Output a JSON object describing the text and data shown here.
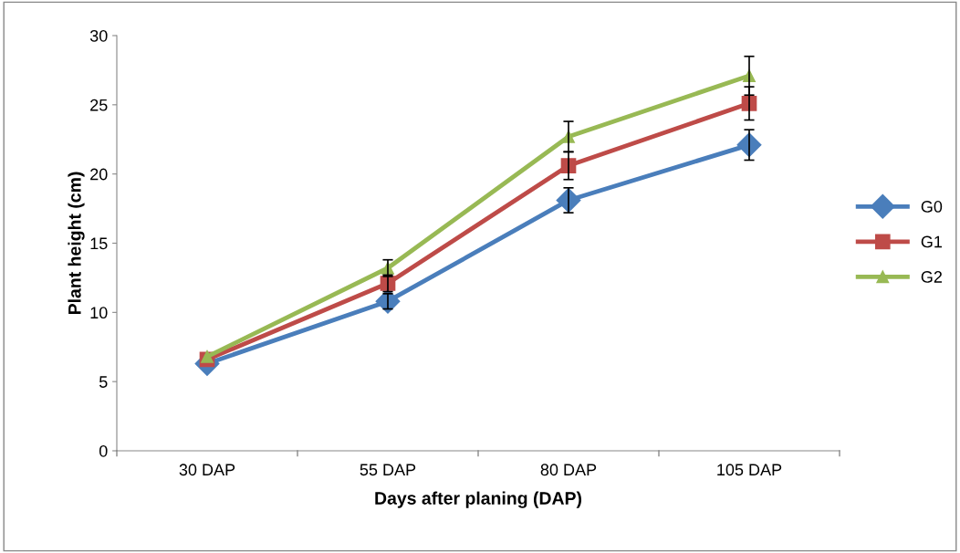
{
  "chart_data": {
    "type": "line",
    "xlabel": "Days after planing (DAP)",
    "ylabel": "Plant height (cm)",
    "categories": [
      "30 DAP",
      "55 DAP",
      "80 DAP",
      "105 DAP"
    ],
    "series": [
      {
        "name": "G0",
        "color": "#4a7ebb",
        "marker": "diamond",
        "values": [
          6.3,
          10.8,
          18.1,
          22.1
        ],
        "errors": [
          null,
          0.55,
          0.9,
          1.1
        ]
      },
      {
        "name": "G1",
        "color": "#be4b48",
        "marker": "square",
        "values": [
          6.6,
          12.1,
          20.6,
          25.1
        ],
        "errors": [
          null,
          0.6,
          1.0,
          1.2
        ]
      },
      {
        "name": "G2",
        "color": "#98b954",
        "marker": "triangle",
        "values": [
          6.8,
          13.2,
          22.7,
          27.1
        ],
        "errors": [
          null,
          0.6,
          1.1,
          1.4
        ]
      }
    ],
    "ylim": [
      0,
      30
    ],
    "yticks": [
      0,
      5,
      10,
      15,
      20,
      25,
      30
    ],
    "grid": false,
    "legend": "right",
    "line_style": "solid"
  }
}
